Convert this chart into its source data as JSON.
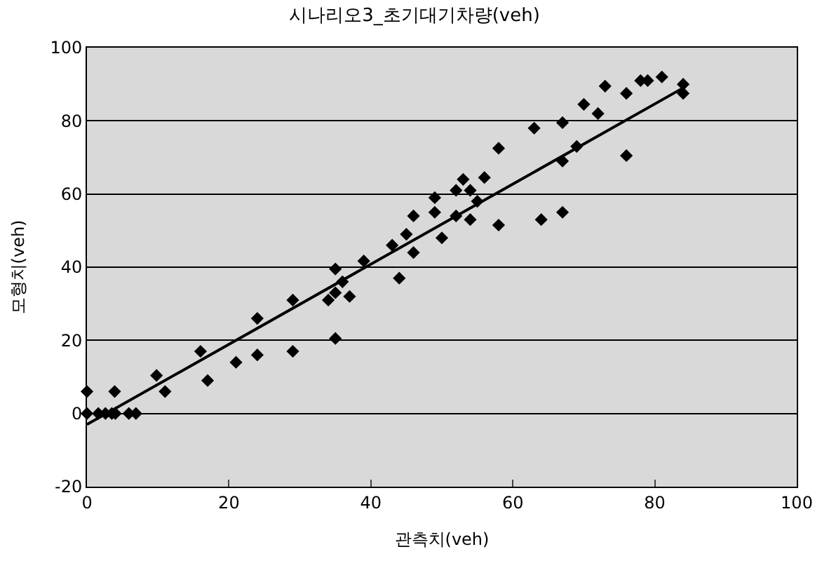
{
  "chart_data": {
    "type": "scatter",
    "title": "시나리오3_초기대기차량(veh)",
    "xlabel": "관측치(veh)",
    "ylabel": "모형치(veh)",
    "xlim": [
      0,
      100
    ],
    "xticks": [
      0,
      20,
      40,
      60,
      80,
      100
    ],
    "ylim": [
      -20,
      100
    ],
    "yticks": [
      -20,
      0,
      20,
      40,
      60,
      80,
      100
    ],
    "grid": "y",
    "marker": "diamond",
    "series": [
      {
        "color": "#000000",
        "x": [
          0,
          0,
          1.6,
          2.6,
          3.5,
          4,
          3.9,
          5.9,
          6.9,
          9.8,
          11,
          16,
          17,
          21,
          24,
          24,
          29,
          29,
          34,
          35,
          35,
          36,
          37,
          35,
          44,
          39,
          43,
          45,
          46,
          46,
          49,
          49,
          50,
          52,
          52,
          54,
          54,
          55,
          53,
          56,
          58,
          58,
          63,
          64,
          67,
          67,
          67,
          69,
          70,
          72,
          73,
          76,
          76,
          78,
          79,
          81,
          84,
          84
        ],
        "values": [
          6,
          0,
          0,
          0,
          0,
          0,
          6,
          0,
          0,
          10.4,
          6,
          17,
          9,
          14,
          26,
          16,
          31,
          17,
          31,
          39.5,
          33,
          36,
          32,
          20.5,
          37,
          41.7,
          46,
          49,
          54,
          44,
          59,
          55,
          48,
          61,
          54,
          61,
          53,
          58,
          64,
          64.5,
          72.5,
          51.5,
          78,
          53,
          79.5,
          69,
          55,
          73,
          84.5,
          82,
          89.5,
          87.5,
          70.5,
          91,
          91,
          92,
          90,
          87.5
        ]
      },
      {
        "type": "line",
        "color": "#000000",
        "line_style": "solid",
        "marker": "none",
        "x": [
          0,
          84
        ],
        "values": [
          -3,
          89
        ]
      }
    ]
  }
}
